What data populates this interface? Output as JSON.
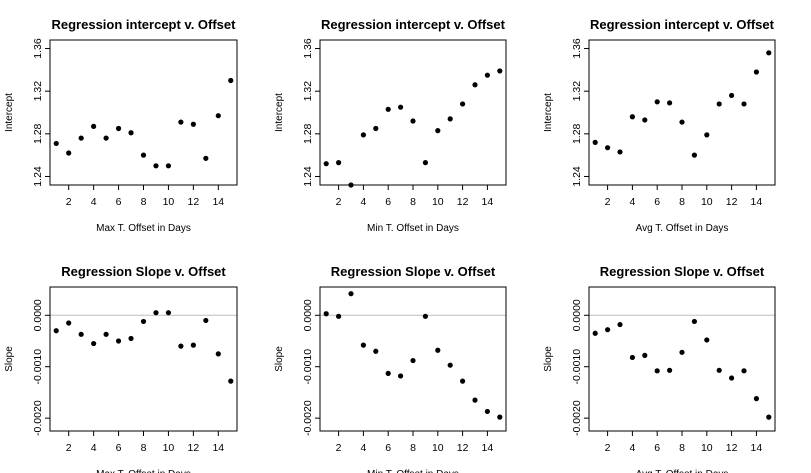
{
  "chart_data": [
    {
      "type": "scatter",
      "title": "Regression intercept v. Offset",
      "xlabel": "Max T. Offset in Days",
      "ylabel": "Intercept",
      "xlim": [
        0.5,
        15.5
      ],
      "ylim": [
        1.232,
        1.368
      ],
      "xticks": [
        "2",
        "4",
        "6",
        "8",
        "10",
        "12",
        "14"
      ],
      "yticks": [
        "1.24",
        "1.28",
        "1.32",
        "1.36"
      ],
      "x": [
        1,
        2,
        3,
        4,
        5,
        6,
        7,
        8,
        9,
        10,
        11,
        12,
        13,
        14,
        15
      ],
      "y": [
        1.271,
        1.262,
        1.276,
        1.287,
        1.276,
        1.285,
        1.281,
        1.26,
        1.25,
        1.25,
        1.291,
        1.289,
        1.257,
        1.297,
        1.33
      ],
      "grid": false
    },
    {
      "type": "scatter",
      "title": "Regression intercept v. Offset",
      "xlabel": "Min T. Offset in Days",
      "ylabel": "Intercept",
      "xlim": [
        0.5,
        15.5
      ],
      "ylim": [
        1.232,
        1.368
      ],
      "xticks": [
        "2",
        "4",
        "6",
        "8",
        "10",
        "12",
        "14"
      ],
      "yticks": [
        "1.24",
        "1.28",
        "1.32",
        "1.36"
      ],
      "x": [
        1,
        2,
        3,
        4,
        5,
        6,
        7,
        8,
        9,
        10,
        11,
        12,
        13,
        14,
        15
      ],
      "y": [
        1.252,
        1.253,
        1.232,
        1.279,
        1.285,
        1.303,
        1.305,
        1.292,
        1.253,
        1.283,
        1.294,
        1.308,
        1.326,
        1.335,
        1.339
      ],
      "grid": false
    },
    {
      "type": "scatter",
      "title": "Regression intercept v. Offset",
      "xlabel": "Avg T. Offset in Days",
      "ylabel": "Intercept",
      "xlim": [
        0.5,
        15.5
      ],
      "ylim": [
        1.232,
        1.368
      ],
      "xticks": [
        "2",
        "4",
        "6",
        "8",
        "10",
        "12",
        "14"
      ],
      "yticks": [
        "1.24",
        "1.28",
        "1.32",
        "1.36"
      ],
      "x": [
        1,
        2,
        3,
        4,
        5,
        6,
        7,
        8,
        9,
        10,
        11,
        12,
        13,
        14,
        15
      ],
      "y": [
        1.272,
        1.267,
        1.263,
        1.296,
        1.293,
        1.31,
        1.309,
        1.291,
        1.26,
        1.279,
        1.308,
        1.316,
        1.308,
        1.338,
        1.356
      ],
      "grid": false
    },
    {
      "type": "scatter",
      "title": "Regression Slope v. Offset",
      "xlabel": "Max T. Offset in Days",
      "ylabel": "Slope",
      "xlim": [
        0.5,
        15.5
      ],
      "ylim": [
        -0.00225,
        0.00055
      ],
      "xticks": [
        "2",
        "4",
        "6",
        "8",
        "10",
        "12",
        "14"
      ],
      "yticks": [
        "-0.0020",
        "-0.0010",
        "0.0000"
      ],
      "reference_line": 0,
      "x": [
        1,
        2,
        3,
        4,
        5,
        6,
        7,
        8,
        9,
        10,
        11,
        12,
        13,
        14,
        15
      ],
      "y": [
        -0.0003,
        -0.00015,
        -0.00037,
        -0.00055,
        -0.00037,
        -0.0005,
        -0.00045,
        -0.00012,
        5e-05,
        5e-05,
        -0.0006,
        -0.00058,
        -0.0001,
        -0.00075,
        -0.00128
      ],
      "grid": false
    },
    {
      "type": "scatter",
      "title": "Regression Slope v. Offset",
      "xlabel": "Min T. Offset in Days",
      "ylabel": "Slope",
      "xlim": [
        0.5,
        15.5
      ],
      "ylim": [
        -0.00225,
        0.00055
      ],
      "xticks": [
        "2",
        "4",
        "6",
        "8",
        "10",
        "12",
        "14"
      ],
      "yticks": [
        "-0.0020",
        "-0.0010",
        "0.0000"
      ],
      "reference_line": 0,
      "x": [
        1,
        2,
        3,
        4,
        5,
        6,
        7,
        8,
        9,
        10,
        11,
        12,
        13,
        14,
        15
      ],
      "y": [
        3e-05,
        -2e-05,
        0.00042,
        -0.00058,
        -0.0007,
        -0.00113,
        -0.00118,
        -0.00088,
        -2e-05,
        -0.00068,
        -0.00097,
        -0.00128,
        -0.00165,
        -0.00187,
        -0.00198
      ],
      "grid": false
    },
    {
      "type": "scatter",
      "title": "Regression Slope v. Offset",
      "xlabel": "Avg T. Offset in Days",
      "ylabel": "Slope",
      "xlim": [
        0.5,
        15.5
      ],
      "ylim": [
        -0.00225,
        0.00055
      ],
      "xticks": [
        "2",
        "4",
        "6",
        "8",
        "10",
        "12",
        "14"
      ],
      "yticks": [
        "-0.0020",
        "-0.0010",
        "0.0000"
      ],
      "reference_line": 0,
      "x": [
        1,
        2,
        3,
        4,
        5,
        6,
        7,
        8,
        9,
        10,
        11,
        12,
        13,
        14,
        15
      ],
      "y": [
        -0.00035,
        -0.00028,
        -0.00018,
        -0.00082,
        -0.00078,
        -0.00108,
        -0.00107,
        -0.00072,
        -0.00012,
        -0.00048,
        -0.00107,
        -0.00122,
        -0.00108,
        -0.00162,
        -0.00198
      ],
      "grid": false
    }
  ]
}
